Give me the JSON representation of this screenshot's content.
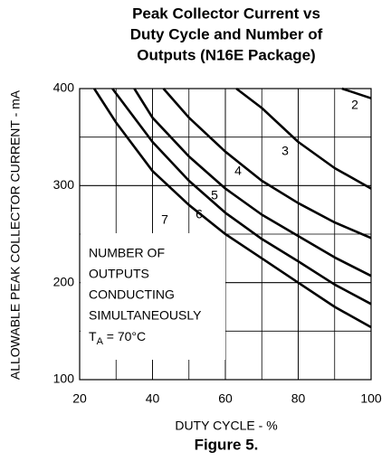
{
  "chart_data": {
    "type": "line",
    "title": [
      "Peak Collector Current vs",
      "Duty Cycle and Number of",
      "Outputs (N16E Package)"
    ],
    "x_label": "DUTY CYCLE - %",
    "y_label": "ALLOWABLE PEAK COLLECTOR CURRENT - mA",
    "caption": "Figure 5.",
    "xlim": [
      20,
      100
    ],
    "xticks": [
      20,
      40,
      60,
      80,
      100
    ],
    "ylim": [
      100,
      400
    ],
    "yticks": [
      100,
      200,
      300,
      400
    ],
    "grid": true,
    "color": "#000000",
    "annotation": [
      "NUMBER OF",
      "OUTPUTS",
      "CONDUCTING",
      "SIMULTANEOUSLY"
    ],
    "condition": {
      "symbol": "T",
      "subscript": "A",
      "text": " = 70°C"
    },
    "series": [
      {
        "name": "2",
        "x": [
          92,
          100
        ],
        "values": [
          400,
          390
        ]
      },
      {
        "name": "3",
        "x": [
          63,
          70,
          80,
          90,
          100
        ],
        "values": [
          400,
          380,
          345,
          318,
          297
        ]
      },
      {
        "name": "4",
        "x": [
          43,
          50,
          60,
          70,
          80,
          90,
          100
        ],
        "values": [
          400,
          370,
          335,
          305,
          282,
          262,
          246
        ]
      },
      {
        "name": "5",
        "x": [
          35,
          40,
          50,
          60,
          70,
          80,
          90,
          100
        ],
        "values": [
          400,
          370,
          330,
          297,
          270,
          248,
          226,
          207
        ]
      },
      {
        "name": "6",
        "x": [
          29,
          40,
          50,
          60,
          70,
          80,
          90,
          100
        ],
        "values": [
          400,
          345,
          305,
          272,
          245,
          222,
          198,
          178
        ]
      },
      {
        "name": "7",
        "x": [
          24,
          30,
          40,
          50,
          60,
          70,
          80,
          90,
          100
        ],
        "values": [
          400,
          365,
          315,
          280,
          250,
          225,
          200,
          175,
          154
        ]
      }
    ]
  }
}
